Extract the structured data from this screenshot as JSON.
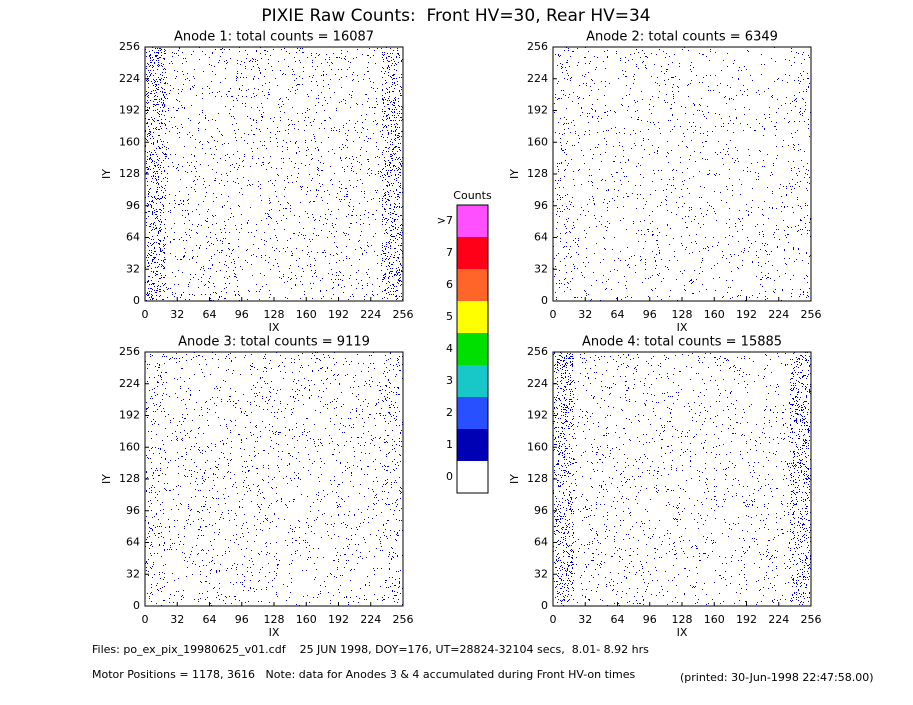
{
  "title": "PIXIE Raw Counts:  Front HV=30, Rear HV=34",
  "footer": {
    "files": "Files: po_ex_pix_19980625_v01.cdf    25 JUN 1998, DOY=176, UT=28824-32104 secs,  8.01- 8.92 hrs",
    "motor": "Motor Positions = 1178, 3616   Note: data for Anodes 3 & 4 accumulated during Front HV-on times",
    "printed": "(printed: 30-Jun-1998 22:47:58.00)"
  },
  "chart_data": [
    {
      "type": "pixelmap",
      "title": "Anode 1: total counts = 16087",
      "xlabel": "IX",
      "ylabel": "IY",
      "color": "#0000c8",
      "xlim": [
        0,
        256
      ],
      "ylim": [
        0,
        256
      ],
      "xticks": [
        0,
        32,
        64,
        96,
        128,
        160,
        192,
        224,
        256
      ],
      "yticks": [
        0,
        32,
        64,
        96,
        128,
        160,
        192,
        224,
        256
      ]
    },
    {
      "type": "pixelmap",
      "title": "Anode 2: total counts = 6349",
      "xlabel": "IX",
      "ylabel": "IY",
      "color": "#0000c8",
      "xlim": [
        0,
        256
      ],
      "ylim": [
        0,
        256
      ],
      "xticks": [
        0,
        32,
        64,
        96,
        128,
        160,
        192,
        224,
        256
      ],
      "yticks": [
        0,
        32,
        64,
        96,
        128,
        160,
        192,
        224,
        256
      ]
    },
    {
      "type": "pixelmap",
      "title": "Anode 3: total counts = 9119",
      "xlabel": "IX",
      "ylabel": "IY",
      "color": "#0000c8",
      "xlim": [
        0,
        256
      ],
      "ylim": [
        0,
        256
      ],
      "xticks": [
        0,
        32,
        64,
        96,
        128,
        160,
        192,
        224,
        256
      ],
      "yticks": [
        0,
        32,
        64,
        96,
        128,
        160,
        192,
        224,
        256
      ]
    },
    {
      "type": "pixelmap",
      "title": "Anode 4: total counts = 15885",
      "xlabel": "IX",
      "ylabel": "IY",
      "color": "#0000c8",
      "xlim": [
        0,
        256
      ],
      "ylim": [
        0,
        256
      ],
      "xticks": [
        0,
        32,
        64,
        96,
        128,
        160,
        192,
        224,
        256
      ],
      "yticks": [
        0,
        32,
        64,
        96,
        128,
        160,
        192,
        224,
        256
      ]
    },
    {
      "type": "colorbar",
      "title": "Counts",
      "categories": [
        "0",
        "1",
        "2",
        "3",
        "4",
        "5",
        "6",
        "7",
        ">7"
      ],
      "colors": [
        "#ffffff",
        "#0000b4",
        "#2850ff",
        "#18c8c8",
        "#00e000",
        "#ffff00",
        "#ff6428",
        "#ff0018",
        "#ff50ff"
      ]
    }
  ]
}
